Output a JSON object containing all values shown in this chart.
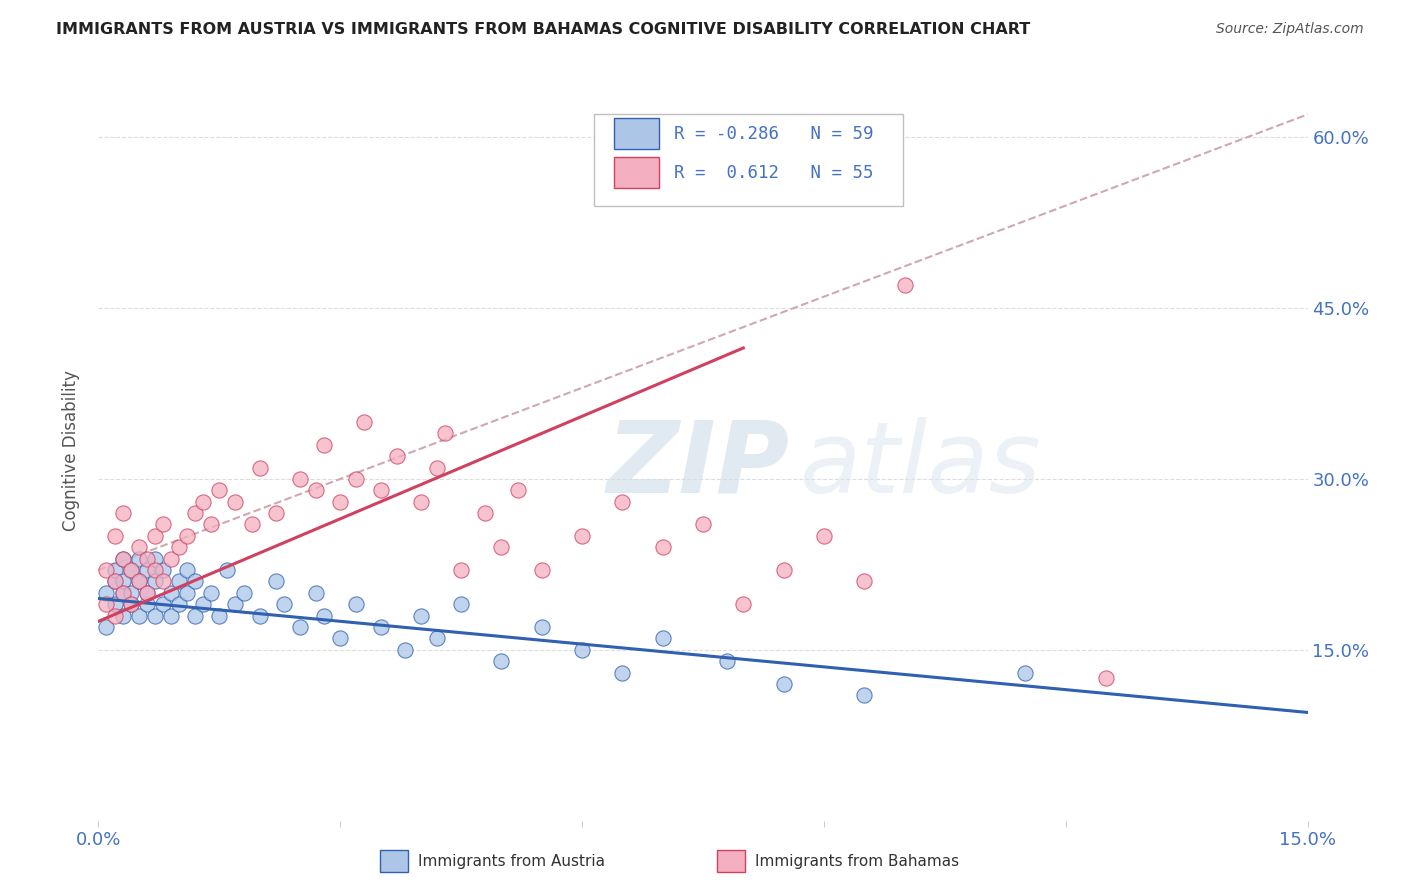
{
  "title": "IMMIGRANTS FROM AUSTRIA VS IMMIGRANTS FROM BAHAMAS COGNITIVE DISABILITY CORRELATION CHART",
  "source": "Source: ZipAtlas.com",
  "ylabel": "Cognitive Disability",
  "xmin": 0.0,
  "xmax": 0.15,
  "ymin": 0.0,
  "ymax": 0.65,
  "yticks": [
    0.15,
    0.3,
    0.45,
    0.6
  ],
  "ytick_labels": [
    "15.0%",
    "30.0%",
    "45.0%",
    "60.0%"
  ],
  "xticks": [
    0.0,
    0.03,
    0.06,
    0.09,
    0.12,
    0.15
  ],
  "xtick_labels": [
    "0.0%",
    "",
    "",
    "",
    "",
    "15.0%"
  ],
  "austria_color": "#adc6e8",
  "bahamas_color": "#f4afc0",
  "austria_line_color": "#3060b0",
  "bahamas_line_color": "#d04060",
  "ref_line_color": "#d0a8b0",
  "title_color": "#222222",
  "source_color": "#555555",
  "label_color": "#4472c4",
  "background_color": "#ffffff",
  "watermark_zip": "ZIP",
  "watermark_atlas": "atlas",
  "austria_trend_x0": 0.0,
  "austria_trend_y0": 0.195,
  "austria_trend_x1": 0.15,
  "austria_trend_y1": 0.095,
  "bahamas_trend_x0": 0.0,
  "bahamas_trend_y0": 0.175,
  "bahamas_trend_x1": 0.08,
  "bahamas_trend_y1": 0.415,
  "ref_line_x0": 0.0,
  "ref_line_y0": 0.22,
  "ref_line_x1": 0.15,
  "ref_line_y1": 0.62,
  "austria_scatter_x": [
    0.001,
    0.001,
    0.002,
    0.002,
    0.002,
    0.003,
    0.003,
    0.003,
    0.003,
    0.004,
    0.004,
    0.004,
    0.005,
    0.005,
    0.005,
    0.006,
    0.006,
    0.006,
    0.007,
    0.007,
    0.007,
    0.008,
    0.008,
    0.009,
    0.009,
    0.01,
    0.01,
    0.011,
    0.011,
    0.012,
    0.012,
    0.013,
    0.014,
    0.015,
    0.016,
    0.017,
    0.018,
    0.02,
    0.022,
    0.023,
    0.025,
    0.027,
    0.028,
    0.03,
    0.032,
    0.035,
    0.038,
    0.04,
    0.042,
    0.045,
    0.05,
    0.055,
    0.06,
    0.065,
    0.07,
    0.078,
    0.085,
    0.095,
    0.115
  ],
  "austria_scatter_y": [
    0.2,
    0.17,
    0.21,
    0.19,
    0.22,
    0.2,
    0.18,
    0.23,
    0.21,
    0.19,
    0.22,
    0.2,
    0.18,
    0.21,
    0.23,
    0.19,
    0.22,
    0.2,
    0.18,
    0.21,
    0.23,
    0.19,
    0.22,
    0.2,
    0.18,
    0.21,
    0.19,
    0.22,
    0.2,
    0.18,
    0.21,
    0.19,
    0.2,
    0.18,
    0.22,
    0.19,
    0.2,
    0.18,
    0.21,
    0.19,
    0.17,
    0.2,
    0.18,
    0.16,
    0.19,
    0.17,
    0.15,
    0.18,
    0.16,
    0.19,
    0.14,
    0.17,
    0.15,
    0.13,
    0.16,
    0.14,
    0.12,
    0.11,
    0.13
  ],
  "bahamas_scatter_x": [
    0.001,
    0.001,
    0.002,
    0.002,
    0.002,
    0.003,
    0.003,
    0.003,
    0.004,
    0.004,
    0.005,
    0.005,
    0.006,
    0.006,
    0.007,
    0.007,
    0.008,
    0.008,
    0.009,
    0.01,
    0.011,
    0.012,
    0.013,
    0.014,
    0.015,
    0.017,
    0.019,
    0.02,
    0.022,
    0.025,
    0.027,
    0.028,
    0.03,
    0.032,
    0.033,
    0.035,
    0.037,
    0.04,
    0.042,
    0.043,
    0.045,
    0.048,
    0.05,
    0.052,
    0.055,
    0.06,
    0.065,
    0.07,
    0.075,
    0.08,
    0.085,
    0.09,
    0.095,
    0.1,
    0.125
  ],
  "bahamas_scatter_y": [
    0.22,
    0.19,
    0.25,
    0.21,
    0.18,
    0.23,
    0.2,
    0.27,
    0.22,
    0.19,
    0.24,
    0.21,
    0.23,
    0.2,
    0.22,
    0.25,
    0.21,
    0.26,
    0.23,
    0.24,
    0.25,
    0.27,
    0.28,
    0.26,
    0.29,
    0.28,
    0.26,
    0.31,
    0.27,
    0.3,
    0.29,
    0.33,
    0.28,
    0.3,
    0.35,
    0.29,
    0.32,
    0.28,
    0.31,
    0.34,
    0.22,
    0.27,
    0.24,
    0.29,
    0.22,
    0.25,
    0.28,
    0.24,
    0.26,
    0.19,
    0.22,
    0.25,
    0.21,
    0.47,
    0.125
  ]
}
